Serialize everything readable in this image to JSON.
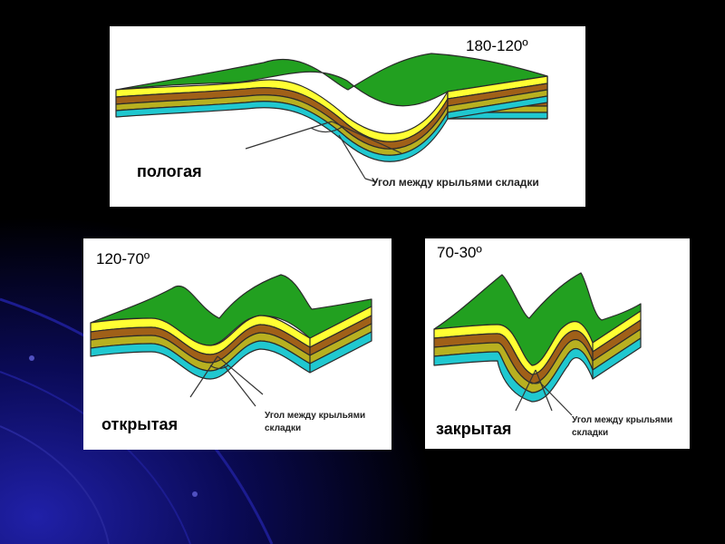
{
  "panels": {
    "top": {
      "angle": "180-120º",
      "fold_type": "пологая",
      "callout": "Угол между крыльями складки"
    },
    "left": {
      "angle": "120-70º",
      "fold_type": "открытая",
      "callout_line1": "Угол между крыльями",
      "callout_line2": "складки"
    },
    "right": {
      "angle": "70-30º",
      "fold_type": "закрытая",
      "callout_line1": "Угол между крыльями",
      "callout_line2": "складки"
    }
  },
  "colors": {
    "background": "#000000",
    "background_glow": "#1a1aa0",
    "green": "#22a020",
    "yellow": "#ffff33",
    "brown": "#a06018",
    "olive": "#b8b020",
    "cyan": "#20c8d0",
    "outline": "#2a2a2a"
  }
}
